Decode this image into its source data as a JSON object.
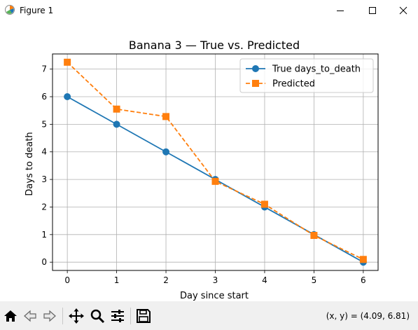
{
  "window": {
    "title": "Figure 1",
    "icon": "matplotlib-logo-icon",
    "controls": [
      "minimize-icon",
      "maximize-icon",
      "close-icon"
    ]
  },
  "toolbar": {
    "buttons": [
      "home-icon",
      "back-arrow-icon",
      "forward-arrow-icon",
      "pan-move-icon",
      "zoom-magnifier-icon",
      "configure-subplots-icon",
      "save-disk-icon"
    ],
    "coords_text": "(x, y) = (4.09, 6.81)"
  },
  "chart_data": {
    "type": "line",
    "title": "Banana 3 — True vs. Predicted",
    "xlabel": "Day since start",
    "ylabel": "Days to death",
    "x": [
      0,
      1,
      2,
      3,
      4,
      5,
      6
    ],
    "xlim": [
      -0.3,
      6.3
    ],
    "ylim": [
      -0.3,
      7.55
    ],
    "xticks": [
      "0",
      "1",
      "2",
      "3",
      "4",
      "5",
      "6"
    ],
    "yticks": [
      "0",
      "1",
      "2",
      "3",
      "4",
      "5",
      "6",
      "7"
    ],
    "grid": true,
    "legend_position": "top-right",
    "series": [
      {
        "name": "True days_to_death",
        "values": [
          6,
          5,
          4,
          3,
          2,
          1,
          0
        ],
        "color": "#1f77b4",
        "marker": "circle",
        "linestyle": "solid"
      },
      {
        "name": "Predicted",
        "values": [
          7.25,
          5.55,
          5.28,
          2.93,
          2.1,
          0.97,
          0.1
        ],
        "color": "#ff7f0e",
        "marker": "square",
        "linestyle": "dashed"
      }
    ]
  }
}
